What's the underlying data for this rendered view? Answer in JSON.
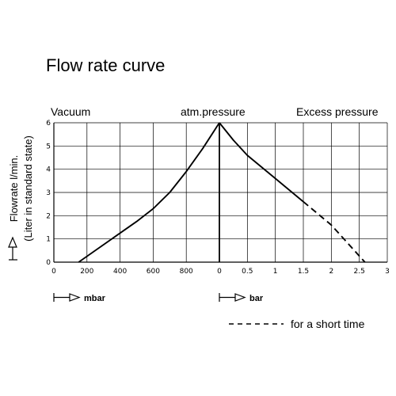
{
  "chart_data": {
    "type": "line",
    "title": "Flow rate curve",
    "ylabel_line1": "Flowrate l/min.",
    "ylabel_line2": "(Liter in standard state)",
    "ylim": [
      0,
      6
    ],
    "y_ticks": [
      "0",
      "1",
      "2",
      "3",
      "4",
      "5",
      "6"
    ],
    "grid": true,
    "section_labels": {
      "left": "Vacuum",
      "center": "atm.pressure",
      "right": "Excess pressure"
    },
    "vacuum_axis": {
      "unit": "mbar",
      "range": [
        0,
        1000
      ],
      "direction": "reversed",
      "ticks": [
        "0",
        "200",
        "400",
        "600",
        "800"
      ],
      "tick_values": [
        1000,
        800,
        600,
        400,
        200
      ]
    },
    "pressure_axis": {
      "unit": "bar",
      "range": [
        0,
        3
      ],
      "ticks": [
        "0",
        "0.5",
        "1",
        "1.5",
        "2",
        "2.5",
        "3"
      ],
      "tick_values": [
        0,
        0.5,
        1,
        1.5,
        2,
        2.5,
        3
      ]
    },
    "series": [
      {
        "segment": "vacuum",
        "style": "solid",
        "points": [
          [
            850,
            0
          ],
          [
            700,
            0.75
          ],
          [
            600,
            1.25
          ],
          [
            500,
            1.75
          ],
          [
            400,
            2.3
          ],
          [
            300,
            3.0
          ],
          [
            200,
            3.9
          ],
          [
            100,
            4.9
          ],
          [
            0,
            6
          ]
        ]
      },
      {
        "segment": "pressure",
        "style": "solid",
        "points": [
          [
            0,
            6
          ],
          [
            0.25,
            5.25
          ],
          [
            0.5,
            4.6
          ],
          [
            1.0,
            3.6
          ],
          [
            1.5,
            2.6
          ]
        ]
      },
      {
        "segment": "pressure",
        "style": "dashed",
        "points": [
          [
            1.5,
            2.6
          ],
          [
            2.0,
            1.6
          ],
          [
            2.6,
            0
          ]
        ]
      }
    ],
    "legend": {
      "dashed_label": "for a short time"
    }
  }
}
